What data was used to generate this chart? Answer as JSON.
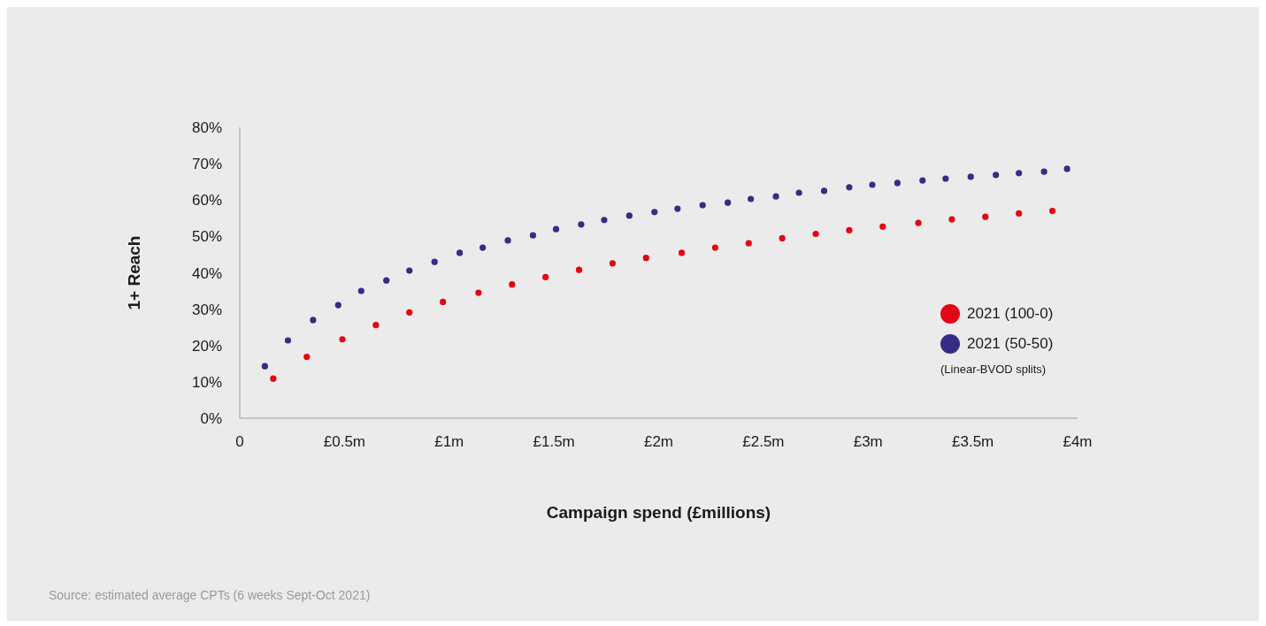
{
  "chart_data": {
    "type": "scatter",
    "xlabel": "Campaign spend (£millions)",
    "ylabel": "1+ Reach",
    "legend_title": "(Linear-BVOD splits)",
    "annotations": [
      "Source: estimated average CPTs (6 weeks Sept-Oct 2021)"
    ],
    "xlim": [
      0,
      4
    ],
    "xticks": [
      0,
      {
        "value": 0.5,
        "label": "£0.5m"
      },
      {
        "value": 1,
        "label": "£1m"
      },
      {
        "value": 1.5,
        "label": "£1.5m"
      },
      {
        "value": 2,
        "label": "£2m"
      },
      {
        "value": 2.5,
        "label": "£2.5m"
      },
      {
        "value": 3,
        "label": "£3m"
      },
      {
        "value": 3.5,
        "label": "£3.5m"
      },
      {
        "value": 4,
        "label": "£4m"
      }
    ],
    "ylim": [
      0,
      80
    ],
    "yticks": [
      {
        "value": 0,
        "label": "0%"
      },
      {
        "value": 10,
        "label": "10%"
      },
      {
        "value": 20,
        "label": "20%"
      },
      {
        "value": 30,
        "label": "30%"
      },
      {
        "value": 40,
        "label": "40%"
      },
      {
        "value": 50,
        "label": "50%"
      },
      {
        "value": 60,
        "label": "60%"
      },
      {
        "value": 70,
        "label": "70%"
      },
      {
        "value": 80,
        "label": "80%"
      }
    ],
    "grid": false,
    "legend": "right",
    "marker": "circle",
    "series": [
      {
        "name": "2021 (100-0)",
        "color": "#e30613",
        "x": [
          0.16,
          0.32,
          0.49,
          0.65,
          0.81,
          0.97,
          1.14,
          1.3,
          1.46,
          1.62,
          1.78,
          1.94,
          2.11,
          2.27,
          2.43,
          2.59,
          2.75,
          2.91,
          3.07,
          3.24,
          3.4,
          3.56,
          3.72,
          3.88
        ],
        "values": [
          10.9,
          16.9,
          21.7,
          25.6,
          29.1,
          32.0,
          34.5,
          36.8,
          38.8,
          40.8,
          42.6,
          44.1,
          45.5,
          46.9,
          48.1,
          49.5,
          50.7,
          51.7,
          52.7,
          53.7,
          54.7,
          55.4,
          56.3,
          57.0
        ]
      },
      {
        "name": "2021 (50-50)",
        "color": "#352d84",
        "x": [
          0.12,
          0.23,
          0.35,
          0.47,
          0.58,
          0.7,
          0.81,
          0.93,
          1.05,
          1.16,
          1.28,
          1.4,
          1.51,
          1.63,
          1.74,
          1.86,
          1.98,
          2.09,
          2.21,
          2.33,
          2.44,
          2.56,
          2.67,
          2.79,
          2.91,
          3.02,
          3.14,
          3.26,
          3.37,
          3.49,
          3.61,
          3.72,
          3.84,
          3.95
        ],
        "values": [
          14.3,
          21.4,
          27.0,
          31.1,
          35.0,
          37.9,
          40.6,
          43.0,
          45.5,
          46.9,
          48.9,
          50.3,
          52.0,
          53.3,
          54.5,
          55.7,
          56.7,
          57.6,
          58.6,
          59.3,
          60.3,
          61.0,
          62.0,
          62.5,
          63.5,
          64.2,
          64.7,
          65.4,
          65.9,
          66.4,
          66.9,
          67.4,
          67.8,
          68.6
        ]
      }
    ]
  }
}
